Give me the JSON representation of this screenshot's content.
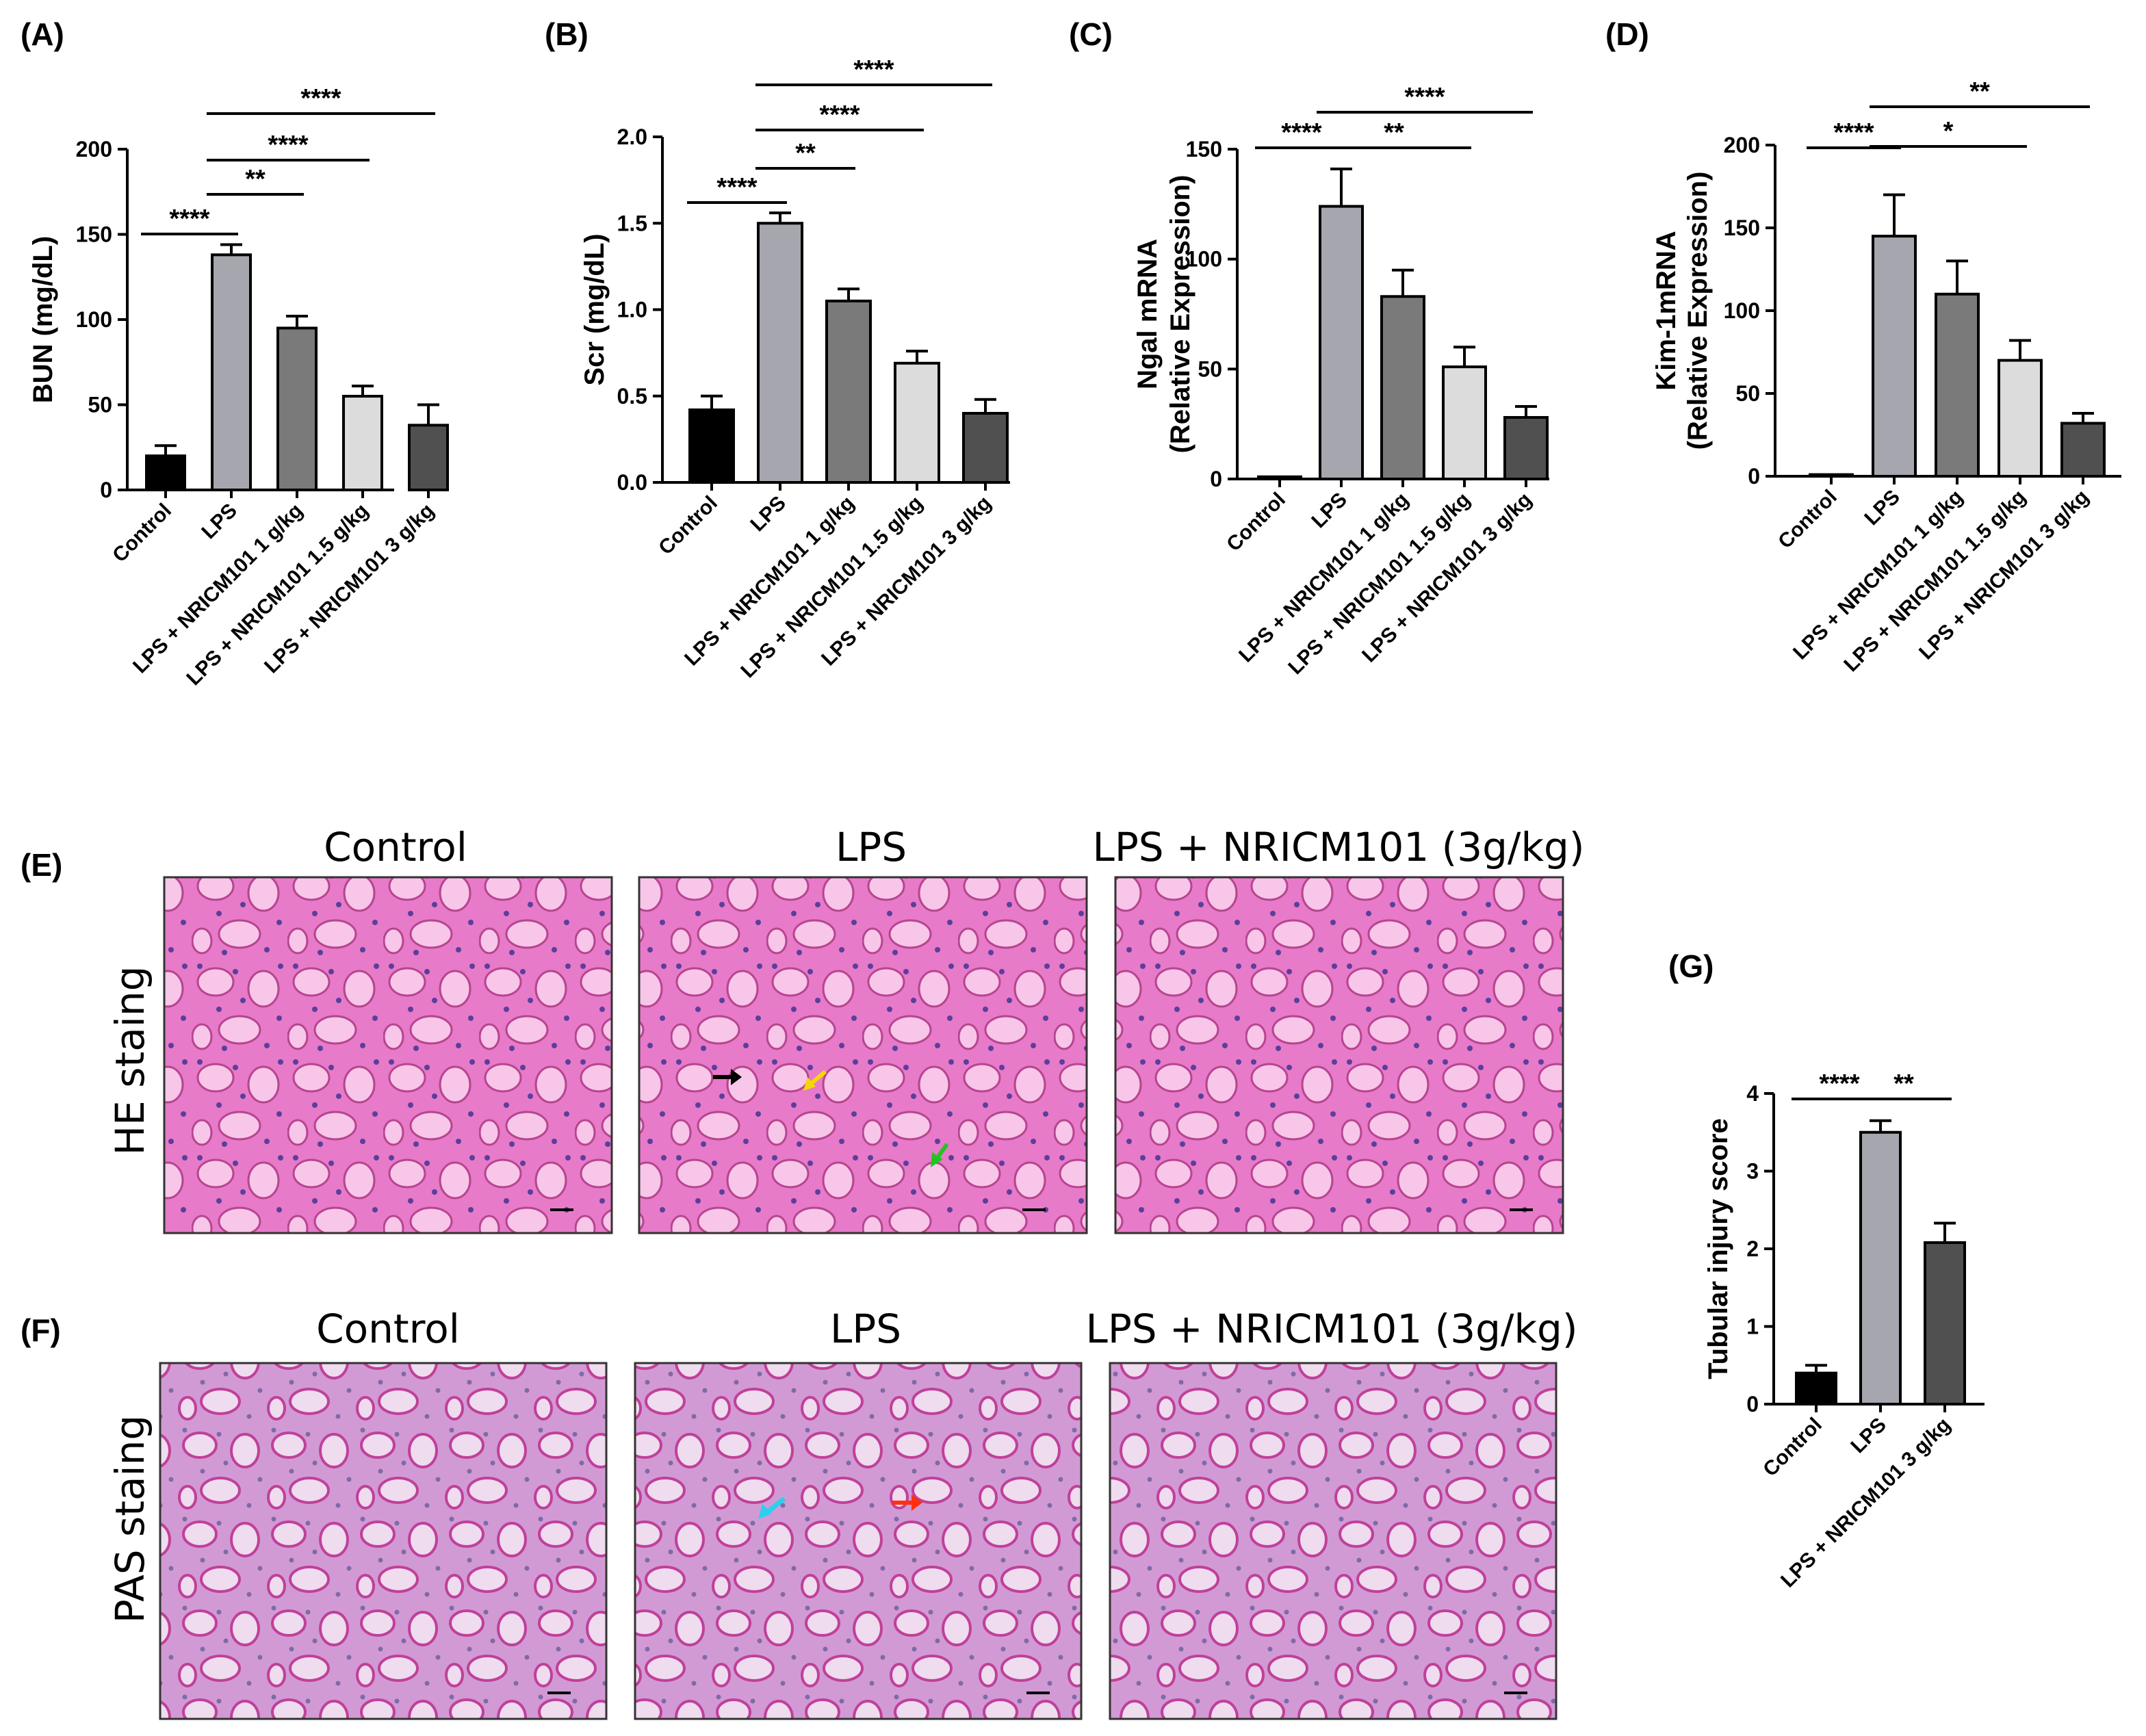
{
  "colors": {
    "Control": "#000000",
    "LPS": "#a6a6ae",
    "LPS + NRICM101 1 g/kg": "#7a7a7a",
    "LPS + NRICM101 1.5 g/kg": "#dcdcdc",
    "LPS + NRICM101 3 g/kg": "#505050",
    "he_tissue": "#e77ac9",
    "he_nuclei": "#5a3f9c",
    "pas_tissue": "#d29ad4",
    "pas_nuclei": "#7e6aa8",
    "arrow_black": "#000000",
    "arrow_yellow": "#f5d800",
    "arrow_green": "#22c422",
    "arrow_cyan": "#2ad0ee",
    "arrow_red": "#ff3010"
  },
  "chart_data": [
    {
      "panel": "(A)",
      "type": "bar",
      "ylabel": "BUN (mg/dL)",
      "categories": [
        "Control",
        "LPS",
        "LPS + NRICM101 1 g/kg",
        "LPS + NRICM101 1.5 g/kg",
        "LPS + NRICM101 3 g/kg"
      ],
      "values": [
        20,
        138,
        95,
        55,
        38
      ],
      "errors": [
        6,
        6,
        7,
        6,
        12
      ],
      "ylim": [
        0,
        200
      ],
      "yticks": [
        "0",
        "50",
        "100",
        "150",
        "200"
      ],
      "significance": [
        {
          "from": 0,
          "to": 1,
          "label": "****"
        },
        {
          "from": 1,
          "to": 2,
          "label": "**"
        },
        {
          "from": 1,
          "to": 3,
          "label": "****"
        },
        {
          "from": 1,
          "to": 4,
          "label": "****"
        }
      ]
    },
    {
      "panel": "(B)",
      "type": "bar",
      "ylabel": "Scr (mg/dL)",
      "categories": [
        "Control",
        "LPS",
        "LPS + NRICM101 1 g/kg",
        "LPS + NRICM101 1.5 g/kg",
        "LPS + NRICM101 3 g/kg"
      ],
      "values": [
        0.42,
        1.5,
        1.05,
        0.69,
        0.4
      ],
      "errors": [
        0.08,
        0.06,
        0.07,
        0.07,
        0.08
      ],
      "ylim": [
        0,
        2.0
      ],
      "yticks": [
        "0.0",
        "0.5",
        "1.0",
        "1.5",
        "2.0"
      ],
      "significance": [
        {
          "from": 0,
          "to": 1,
          "label": "****"
        },
        {
          "from": 1,
          "to": 2,
          "label": "**"
        },
        {
          "from": 1,
          "to": 3,
          "label": "****"
        },
        {
          "from": 1,
          "to": 4,
          "label": "****"
        }
      ]
    },
    {
      "panel": "(C)",
      "type": "bar",
      "ylabel_lines": [
        "Ngal mRNA",
        "(Relative Expression)"
      ],
      "categories": [
        "Control",
        "LPS",
        "LPS + NRICM101 1 g/kg",
        "LPS + NRICM101 1.5 g/kg",
        "LPS + NRICM101 3 g/kg"
      ],
      "values": [
        1,
        124,
        83,
        51,
        28
      ],
      "errors": [
        0,
        17,
        12,
        9,
        5
      ],
      "ylim": [
        0,
        150
      ],
      "yticks": [
        "0",
        "50",
        "100",
        "150"
      ],
      "significance": [
        {
          "from": 0,
          "to": 1,
          "label": "****"
        },
        {
          "from": 1,
          "to": 3,
          "label": "**"
        },
        {
          "from": 1,
          "to": 4,
          "label": "****"
        }
      ]
    },
    {
      "panel": "(D)",
      "type": "bar",
      "ylabel_lines": [
        "Kim-1mRNA",
        "(Relative Expression)"
      ],
      "categories": [
        "Control",
        "LPS",
        "LPS + NRICM101 1 g/kg",
        "LPS + NRICM101 1.5 g/kg",
        "LPS + NRICM101 3 g/kg"
      ],
      "values": [
        1,
        145,
        110,
        70,
        32
      ],
      "errors": [
        0,
        25,
        20,
        12,
        6
      ],
      "ylim": [
        0,
        200
      ],
      "yticks": [
        "0",
        "50",
        "100",
        "150",
        "200"
      ],
      "significance": [
        {
          "from": 0,
          "to": 1,
          "label": "****"
        },
        {
          "from": 1,
          "to": 3,
          "label": "*"
        },
        {
          "from": 1,
          "to": 4,
          "label": "**"
        }
      ]
    },
    {
      "panel": "(G)",
      "type": "bar",
      "ylabel": "Tubular injury score",
      "categories": [
        "Control",
        "LPS",
        "LPS + NRICM101 3 g/kg"
      ],
      "values": [
        0.4,
        3.5,
        2.08
      ],
      "errors": [
        0.1,
        0.15,
        0.25
      ],
      "ylim": [
        0,
        4
      ],
      "yticks": [
        "0",
        "1",
        "2",
        "3",
        "4"
      ],
      "significance": [
        {
          "from": 0,
          "to": 1,
          "label": "****"
        },
        {
          "from": 1,
          "to": 2,
          "label": "**"
        }
      ]
    }
  ],
  "histology": {
    "panels": [
      {
        "panel": "(E)",
        "row_label": "HE staing",
        "titles": [
          "Control",
          "LPS",
          "LPS + NRICM101 (3g/kg)"
        ]
      },
      {
        "panel": "(F)",
        "row_label": "PAS staing",
        "titles": [
          "Control",
          "LPS",
          "LPS + NRICM101 (3g/kg)"
        ]
      }
    ]
  }
}
